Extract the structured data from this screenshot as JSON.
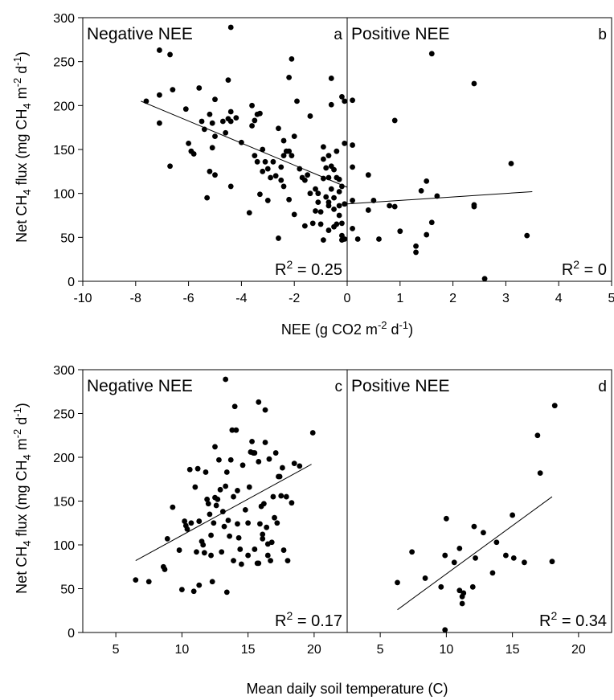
{
  "chart_data": [
    {
      "id": "a",
      "type": "scatter",
      "title": "Negative NEE",
      "panel_label": "a",
      "r2": {
        "prefix": "R",
        "sup": "2",
        "value": " = 0.25"
      },
      "xlim": [
        -10,
        0
      ],
      "ylim": [
        0,
        300
      ],
      "xticks": [
        "-10",
        "-8",
        "-6",
        "-4",
        "-2"
      ],
      "yticks": [
        "0",
        "50",
        "100",
        "150",
        "200",
        "250",
        "300"
      ],
      "grid": false,
      "marker_color": "#000000",
      "fit": {
        "x": [
          -7.8,
          0
        ],
        "y": [
          205,
          107
        ]
      },
      "points": [
        [
          -7.1,
          263
        ],
        [
          -6.7,
          258
        ],
        [
          -4.4,
          289
        ],
        [
          -2.1,
          253
        ],
        [
          -7.6,
          205
        ],
        [
          -7.1,
          212
        ],
        [
          -6.6,
          218
        ],
        [
          -7.1,
          180
        ],
        [
          -6.1,
          196
        ],
        [
          -6.0,
          157
        ],
        [
          -6.7,
          131
        ],
        [
          -5.9,
          148
        ],
        [
          -5.8,
          145
        ],
        [
          -5.6,
          220
        ],
        [
          -5.5,
          182
        ],
        [
          -5.4,
          173
        ],
        [
          -5.2,
          190
        ],
        [
          -5.1,
          180
        ],
        [
          -5.0,
          207
        ],
        [
          -5.1,
          152
        ],
        [
          -5.2,
          125
        ],
        [
          -5.0,
          121
        ],
        [
          -5.0,
          165
        ],
        [
          -5.3,
          95
        ],
        [
          -4.7,
          182
        ],
        [
          -4.6,
          169
        ],
        [
          -4.5,
          185
        ],
        [
          -4.4,
          193
        ],
        [
          -4.5,
          229
        ],
        [
          -4.4,
          182
        ],
        [
          -4.2,
          186
        ],
        [
          -4.4,
          108
        ],
        [
          -4.0,
          158
        ],
        [
          -3.6,
          200
        ],
        [
          -3.6,
          177
        ],
        [
          -3.5,
          183
        ],
        [
          -3.4,
          190
        ],
        [
          -3.3,
          191
        ],
        [
          -3.2,
          150
        ],
        [
          -3.5,
          143
        ],
        [
          -3.4,
          136
        ],
        [
          -3.1,
          136
        ],
        [
          -3.0,
          128
        ],
        [
          -3.2,
          125
        ],
        [
          -2.9,
          118
        ],
        [
          -2.7,
          120
        ],
        [
          -2.5,
          115
        ],
        [
          -3.3,
          99
        ],
        [
          -3.0,
          92
        ],
        [
          -2.8,
          136
        ],
        [
          -2.6,
          174
        ],
        [
          -2.4,
          160
        ],
        [
          -2.3,
          148
        ],
        [
          -2.2,
          148
        ],
        [
          -2.1,
          143
        ],
        [
          -2.0,
          165
        ],
        [
          -1.9,
          205
        ],
        [
          -2.2,
          232
        ],
        [
          -2.4,
          143
        ],
        [
          -2.5,
          130
        ],
        [
          -2.4,
          108
        ],
        [
          -2.2,
          93
        ],
        [
          -2.0,
          76
        ],
        [
          -2.6,
          49
        ],
        [
          -1.8,
          128
        ],
        [
          -1.7,
          118
        ],
        [
          -1.6,
          115
        ],
        [
          -1.5,
          121
        ],
        [
          -1.4,
          100
        ],
        [
          -1.4,
          188
        ],
        [
          -1.2,
          105
        ],
        [
          -1.1,
          100
        ],
        [
          -1.0,
          79
        ],
        [
          -1.0,
          65
        ],
        [
          -0.9,
          153
        ],
        [
          -0.9,
          139
        ],
        [
          -0.8,
          129
        ],
        [
          -0.9,
          117
        ],
        [
          -0.8,
          96
        ],
        [
          -0.7,
          90
        ],
        [
          -0.7,
          143
        ],
        [
          -0.7,
          118
        ],
        [
          -0.7,
          86
        ],
        [
          -0.6,
          131
        ],
        [
          -0.6,
          105
        ],
        [
          -0.5,
          95
        ],
        [
          -0.5,
          82
        ],
        [
          -0.5,
          62
        ],
        [
          -0.4,
          148
        ],
        [
          -0.4,
          118
        ],
        [
          -0.3,
          116
        ],
        [
          -0.3,
          102
        ],
        [
          -0.3,
          75
        ],
        [
          -0.2,
          66
        ],
        [
          -0.2,
          52
        ],
        [
          -0.2,
          47
        ],
        [
          -0.1,
          48
        ],
        [
          -0.1,
          88
        ],
        [
          -0.6,
          231
        ],
        [
          -0.6,
          201
        ],
        [
          -0.2,
          210
        ],
        [
          -0.1,
          205
        ],
        [
          -0.1,
          157
        ],
        [
          -0.2,
          108
        ],
        [
          -1.2,
          80
        ],
        [
          -1.6,
          63
        ],
        [
          -0.9,
          47
        ],
        [
          -0.7,
          58
        ],
        [
          -1.3,
          66
        ],
        [
          -3.7,
          78
        ],
        [
          -1.1,
          90
        ],
        [
          -0.5,
          127
        ],
        [
          -0.4,
          65
        ],
        [
          -0.3,
          86
        ]
      ]
    },
    {
      "id": "b",
      "type": "scatter",
      "title": "Positive NEE",
      "panel_label": "b",
      "r2": {
        "prefix": "R",
        "sup": "2",
        "value": " = 0"
      },
      "xlim": [
        0,
        5
      ],
      "ylim": [
        0,
        300
      ],
      "xticks": [
        "0",
        "1",
        "2",
        "3",
        "4",
        "5"
      ],
      "grid": false,
      "marker_color": "#000000",
      "fit": {
        "x": [
          0,
          3.5
        ],
        "y": [
          88,
          102
        ]
      },
      "points": [
        [
          0.1,
          206
        ],
        [
          0.1,
          155
        ],
        [
          0.1,
          130
        ],
        [
          0.1,
          92
        ],
        [
          0.1,
          60
        ],
        [
          0.2,
          48
        ],
        [
          0.4,
          81
        ],
        [
          0.4,
          121
        ],
        [
          0.5,
          92
        ],
        [
          0.6,
          48
        ],
        [
          0.8,
          86
        ],
        [
          0.9,
          183
        ],
        [
          0.9,
          85
        ],
        [
          1.0,
          57
        ],
        [
          1.3,
          40
        ],
        [
          1.3,
          33
        ],
        [
          1.4,
          103
        ],
        [
          1.5,
          114
        ],
        [
          1.5,
          53
        ],
        [
          1.6,
          67
        ],
        [
          1.6,
          259
        ],
        [
          1.7,
          97
        ],
        [
          2.4,
          225
        ],
        [
          2.4,
          87
        ],
        [
          2.4,
          85
        ],
        [
          2.6,
          3
        ],
        [
          3.1,
          134
        ],
        [
          3.4,
          52
        ]
      ]
    },
    {
      "id": "c",
      "type": "scatter",
      "title": "Negative NEE",
      "panel_label": "c",
      "r2": {
        "prefix": "R",
        "sup": "2",
        "value": " = 0.17"
      },
      "xlim": [
        2.5,
        22.5
      ],
      "ylim": [
        0,
        300
      ],
      "xticks": [
        "5",
        "10",
        "15",
        "20"
      ],
      "yticks": [
        "0",
        "50",
        "100",
        "150",
        "200",
        "250",
        "300"
      ],
      "grid": false,
      "marker_color": "#000000",
      "fit": {
        "x": [
          6.5,
          19.8
        ],
        "y": [
          82,
          192
        ]
      },
      "points": [
        [
          6.5,
          60
        ],
        [
          7.5,
          58
        ],
        [
          8.6,
          75
        ],
        [
          8.7,
          72
        ],
        [
          8.9,
          107
        ],
        [
          9.3,
          143
        ],
        [
          9.8,
          94
        ],
        [
          10.0,
          49
        ],
        [
          10.2,
          127
        ],
        [
          10.3,
          122
        ],
        [
          10.4,
          118
        ],
        [
          10.6,
          186
        ],
        [
          10.7,
          125
        ],
        [
          10.9,
          47
        ],
        [
          11.0,
          166
        ],
        [
          11.1,
          92
        ],
        [
          11.2,
          187
        ],
        [
          11.3,
          54
        ],
        [
          11.3,
          127
        ],
        [
          11.5,
          104
        ],
        [
          11.6,
          100
        ],
        [
          11.7,
          91
        ],
        [
          11.8,
          183
        ],
        [
          11.9,
          152
        ],
        [
          12.0,
          147
        ],
        [
          12.1,
          135
        ],
        [
          12.2,
          111
        ],
        [
          12.2,
          88
        ],
        [
          12.3,
          58
        ],
        [
          12.4,
          125
        ],
        [
          12.5,
          154
        ],
        [
          12.5,
          212
        ],
        [
          12.6,
          145
        ],
        [
          12.7,
          152
        ],
        [
          12.8,
          197
        ],
        [
          12.9,
          163
        ],
        [
          13.0,
          92
        ],
        [
          13.1,
          138
        ],
        [
          13.2,
          121
        ],
        [
          13.3,
          289
        ],
        [
          13.3,
          167
        ],
        [
          13.4,
          183
        ],
        [
          13.4,
          46
        ],
        [
          13.5,
          128
        ],
        [
          13.6,
          110
        ],
        [
          13.7,
          197
        ],
        [
          13.8,
          231
        ],
        [
          13.9,
          82
        ],
        [
          13.9,
          155
        ],
        [
          14.0,
          258
        ],
        [
          14.1,
          231
        ],
        [
          14.2,
          162
        ],
        [
          14.2,
          124
        ],
        [
          14.3,
          108
        ],
        [
          14.4,
          95
        ],
        [
          14.5,
          78
        ],
        [
          14.6,
          191
        ],
        [
          14.8,
          140
        ],
        [
          15.0,
          88
        ],
        [
          15.0,
          125
        ],
        [
          15.1,
          166
        ],
        [
          15.2,
          206
        ],
        [
          15.3,
          218
        ],
        [
          15.4,
          205
        ],
        [
          15.5,
          205
        ],
        [
          15.5,
          95
        ],
        [
          15.7,
          79
        ],
        [
          15.8,
          263
        ],
        [
          15.8,
          195
        ],
        [
          15.9,
          124
        ],
        [
          16.0,
          144
        ],
        [
          16.1,
          112
        ],
        [
          16.1,
          107
        ],
        [
          16.2,
          147
        ],
        [
          16.3,
          254
        ],
        [
          16.3,
          217
        ],
        [
          16.4,
          120
        ],
        [
          16.5,
          101
        ],
        [
          16.6,
          198
        ],
        [
          16.7,
          82
        ],
        [
          16.8,
          103
        ],
        [
          16.9,
          155
        ],
        [
          17.0,
          131
        ],
        [
          17.1,
          205
        ],
        [
          17.2,
          125
        ],
        [
          17.3,
          178
        ],
        [
          17.4,
          178
        ],
        [
          17.5,
          156
        ],
        [
          17.6,
          188
        ],
        [
          17.7,
          94
        ],
        [
          17.9,
          155
        ],
        [
          18.0,
          82
        ],
        [
          18.3,
          148
        ],
        [
          18.5,
          193
        ],
        [
          18.9,
          190
        ],
        [
          19.9,
          228
        ],
        [
          16.5,
          88
        ],
        [
          15.8,
          79
        ]
      ]
    },
    {
      "id": "d",
      "type": "scatter",
      "title": "Positive NEE",
      "panel_label": "d",
      "r2": {
        "prefix": "R",
        "sup": "2",
        "value": " = 0.34"
      },
      "xlim": [
        2.5,
        22.5
      ],
      "ylim": [
        0,
        300
      ],
      "xticks": [
        "5",
        "10",
        "15",
        "20"
      ],
      "grid": false,
      "marker_color": "#000000",
      "fit": {
        "x": [
          6.3,
          18.0
        ],
        "y": [
          26,
          155
        ]
      },
      "points": [
        [
          6.3,
          57
        ],
        [
          7.4,
          92
        ],
        [
          8.4,
          62
        ],
        [
          9.6,
          52
        ],
        [
          9.9,
          88
        ],
        [
          10.0,
          130
        ],
        [
          9.9,
          3
        ],
        [
          10.6,
          80
        ],
        [
          11.0,
          96
        ],
        [
          11.0,
          48
        ],
        [
          11.2,
          41
        ],
        [
          11.2,
          33
        ],
        [
          11.3,
          45
        ],
        [
          12.0,
          52
        ],
        [
          12.1,
          121
        ],
        [
          12.2,
          85
        ],
        [
          12.8,
          114
        ],
        [
          13.5,
          68
        ],
        [
          13.8,
          103
        ],
        [
          14.5,
          88
        ],
        [
          15.0,
          134
        ],
        [
          15.1,
          85
        ],
        [
          15.9,
          80
        ],
        [
          16.9,
          225
        ],
        [
          17.1,
          182
        ],
        [
          18.0,
          81
        ],
        [
          18.2,
          259
        ]
      ]
    }
  ],
  "labels": {
    "x_top": {
      "pre": "NEE (g CO2 m",
      "sup1": "-2",
      "mid": " d",
      "sup2": "-1",
      "post": ")"
    },
    "x_bottom": "Mean daily soil temperature (C)",
    "y": {
      "t1": "Net CH",
      "sub": "4",
      "t2": " flux (mg CH",
      "sub2": "4",
      "t3": " m",
      "sup1": "-2",
      "t4": " d",
      "sup2": "-1",
      "t5": ")"
    }
  }
}
